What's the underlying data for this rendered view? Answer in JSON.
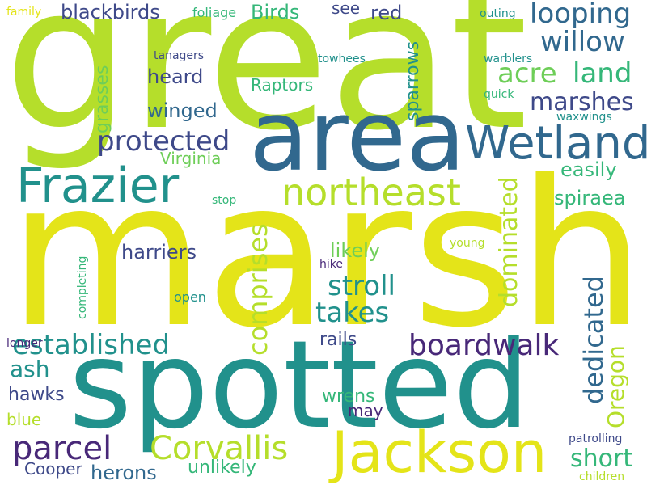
{
  "colors": {
    "background": "#ffffff",
    "lime": "#b5de2b",
    "yellow": "#e4e419",
    "teal": "#21918c",
    "blue": "#31688e",
    "navy": "#3e4989",
    "purple": "#482878",
    "green": "#35b779",
    "lightgreen": "#6ece58"
  },
  "words": {
    "great": "great",
    "marsh": "marsh",
    "spotted": "spotted",
    "area": "area",
    "jackson": "Jackson",
    "frazier": "Frazier",
    "wetland": "Wetland",
    "northeast": "northeast",
    "corvallis": "Corvallis",
    "parcel": "parcel",
    "boardwalk": "boardwalk",
    "established": "established",
    "looping": "looping",
    "willow": "willow",
    "acre": "acre",
    "land": "land",
    "marshes": "marshes",
    "protected": "protected",
    "comprises": "comprises",
    "stroll": "stroll",
    "takes": "takes",
    "dedicated": "dedicated",
    "dominated": "dominated",
    "oregon": "Oregon",
    "short": "short",
    "blackbirds": "blackbirds",
    "birds": "Birds",
    "see": "see",
    "red": "red",
    "sparrows": "sparrows",
    "heard": "heard",
    "winged": "winged",
    "raptors": "Raptors",
    "grasses": "grasses",
    "virginia": "Virginia",
    "easily": "easily",
    "spiraea": "spiraea",
    "likely": "likely",
    "harriers": "harriers",
    "ash": "ash",
    "rails": "rails",
    "hawks": "hawks",
    "wrens": "wrens",
    "blue": "blue",
    "may": "may",
    "cooper": "Cooper",
    "herons": "herons",
    "unlikely": "unlikely",
    "family": "family",
    "foliage": "foliage",
    "outing": "outing",
    "tanagers": "tanagers",
    "towhees": "towhees",
    "warblers": "warblers",
    "quick": "quick",
    "waxwings": "waxwings",
    "stop": "stop",
    "young": "young",
    "hike": "hike",
    "open": "open",
    "completing": "completing",
    "longer": "longer",
    "patrolling": "patrolling",
    "children": "children"
  }
}
